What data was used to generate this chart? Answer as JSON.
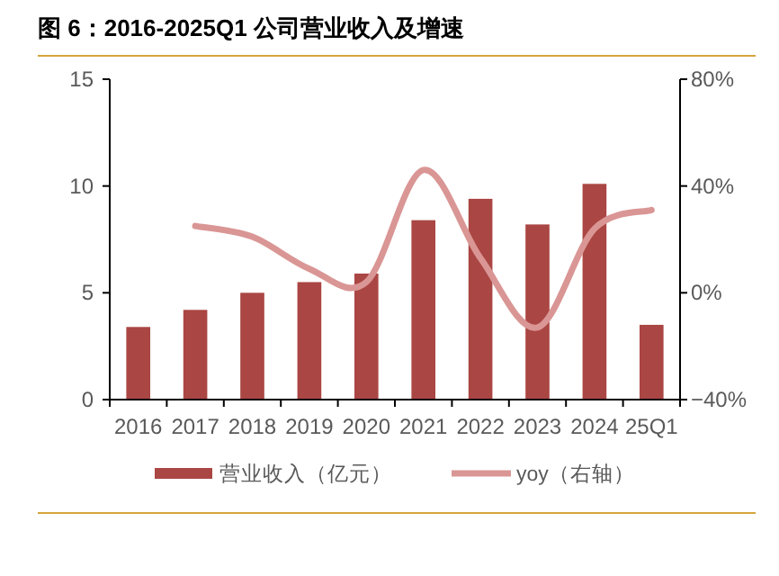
{
  "chart_data": {
    "type": "bar",
    "title": "图 6：2016-2025Q1 公司营业收入及增速",
    "categories": [
      "2016",
      "2017",
      "2018",
      "2019",
      "2020",
      "2021",
      "2022",
      "2023",
      "2024",
      "25Q1"
    ],
    "series": [
      {
        "name": "营业收入（亿元）",
        "color": "#aa4643",
        "values": [
          3.4,
          4.2,
          5.0,
          5.5,
          5.9,
          8.4,
          9.4,
          8.2,
          10.1,
          3.5
        ]
      },
      {
        "name": "yoy（右轴）",
        "type": "line",
        "axis": "y2",
        "color": "#d99694",
        "values": [
          null,
          25,
          21,
          9,
          4,
          46,
          13,
          -13,
          24,
          31
        ]
      }
    ],
    "ylim": [
      0,
      15
    ],
    "yticks": [
      0,
      5,
      10,
      15
    ],
    "y2lim": [
      -40,
      80
    ],
    "y2ticks": [
      {
        "value": -40,
        "label": "−40%"
      },
      {
        "value": 0,
        "label": "0%"
      },
      {
        "value": 40,
        "label": "40%"
      },
      {
        "value": 80,
        "label": "80%"
      }
    ],
    "legend": "bottom"
  }
}
